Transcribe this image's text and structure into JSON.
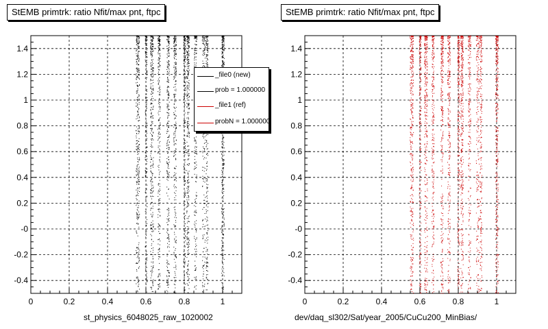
{
  "panels": [
    {
      "title": "StEMB primtrk: ratio Nfit/max pnt, ftpc",
      "xlabel": "st_physics_6048025_raw_1020002"
    },
    {
      "title": "StEMB primtrk: ratio Nfit/max pnt, ftpc",
      "xlabel": "dev/daq_sl302/Sat/year_2005/CuCu200_MinBias/"
    }
  ],
  "legend": {
    "entries": [
      {
        "label": "_file0 (new)",
        "color": "#000000"
      },
      {
        "label": "prob = 1.000000",
        "color": "#000000"
      },
      {
        "label": "_file1 (ref)",
        "color": "#cc0000"
      },
      {
        "label": "probN = 1.000000",
        "color": "#cc0000"
      }
    ]
  },
  "footer": "...",
  "chart_data": [
    {
      "type": "scatter",
      "title": "StEMB primtrk: ratio Nfit/max pnt, ftpc",
      "xlabel": "st_physics_6048025_raw_1020002",
      "ylabel": "",
      "xlim": [
        0,
        1.1
      ],
      "ylim": [
        -0.5,
        1.5
      ],
      "grid": true,
      "legend_position": "top-right",
      "x_ticks": [
        "0",
        "0.2",
        "0.4",
        "0.6",
        "0.8",
        "1"
      ],
      "y_ticks": [
        "-0.4",
        "-0.2",
        "-0",
        "0.2",
        "0.4",
        "0.6",
        "0.8",
        "1",
        "1.2",
        "1.4"
      ],
      "color": "#000000",
      "series": [
        {
          "name": "_file0 (new)",
          "bands": [
            {
              "x": 0.556,
              "width": 0.018,
              "density": 1.0
            },
            {
              "x": 0.6,
              "width": 0.01,
              "density": 0.6
            },
            {
              "x": 0.63,
              "width": 0.016,
              "density": 0.9
            },
            {
              "x": 0.667,
              "width": 0.012,
              "density": 0.7
            },
            {
              "x": 0.714,
              "width": 0.014,
              "density": 0.8
            },
            {
              "x": 0.75,
              "width": 0.014,
              "density": 0.75
            },
            {
              "x": 0.8,
              "width": 0.01,
              "density": 0.7
            },
            {
              "x": 0.818,
              "width": 0.014,
              "density": 0.95
            },
            {
              "x": 0.857,
              "width": 0.014,
              "density": 0.6
            },
            {
              "x": 0.9,
              "width": 0.016,
              "density": 0.55
            },
            {
              "x": 0.917,
              "width": 0.01,
              "density": 0.6
            },
            {
              "x": 1.0,
              "width": 0.014,
              "density": 1.0
            }
          ]
        }
      ]
    },
    {
      "type": "scatter",
      "title": "StEMB primtrk: ratio Nfit/max pnt, ftpc",
      "xlabel": "dev/daq_sl302/Sat/year_2005/CuCu200_MinBias/",
      "ylabel": "",
      "xlim": [
        0,
        1.1
      ],
      "ylim": [
        -0.5,
        1.5
      ],
      "grid": true,
      "x_ticks": [
        "0",
        "0.2",
        "0.4",
        "0.6",
        "0.8",
        "1"
      ],
      "y_ticks": [
        "-0.4",
        "-0.2",
        "-0",
        "0.2",
        "0.4",
        "0.6",
        "0.8",
        "1",
        "1.2",
        "1.4"
      ],
      "color": "#cc0000",
      "series": [
        {
          "name": "_file1 (ref)",
          "bands": [
            {
              "x": 0.556,
              "width": 0.018,
              "density": 1.0
            },
            {
              "x": 0.6,
              "width": 0.01,
              "density": 0.6
            },
            {
              "x": 0.63,
              "width": 0.016,
              "density": 0.9
            },
            {
              "x": 0.667,
              "width": 0.012,
              "density": 0.7
            },
            {
              "x": 0.714,
              "width": 0.014,
              "density": 0.8
            },
            {
              "x": 0.75,
              "width": 0.014,
              "density": 0.75
            },
            {
              "x": 0.8,
              "width": 0.01,
              "density": 0.7
            },
            {
              "x": 0.818,
              "width": 0.014,
              "density": 0.95
            },
            {
              "x": 0.857,
              "width": 0.014,
              "density": 0.6
            },
            {
              "x": 0.9,
              "width": 0.016,
              "density": 0.55
            },
            {
              "x": 0.917,
              "width": 0.01,
              "density": 0.6
            },
            {
              "x": 1.0,
              "width": 0.014,
              "density": 1.0
            }
          ]
        }
      ]
    }
  ]
}
